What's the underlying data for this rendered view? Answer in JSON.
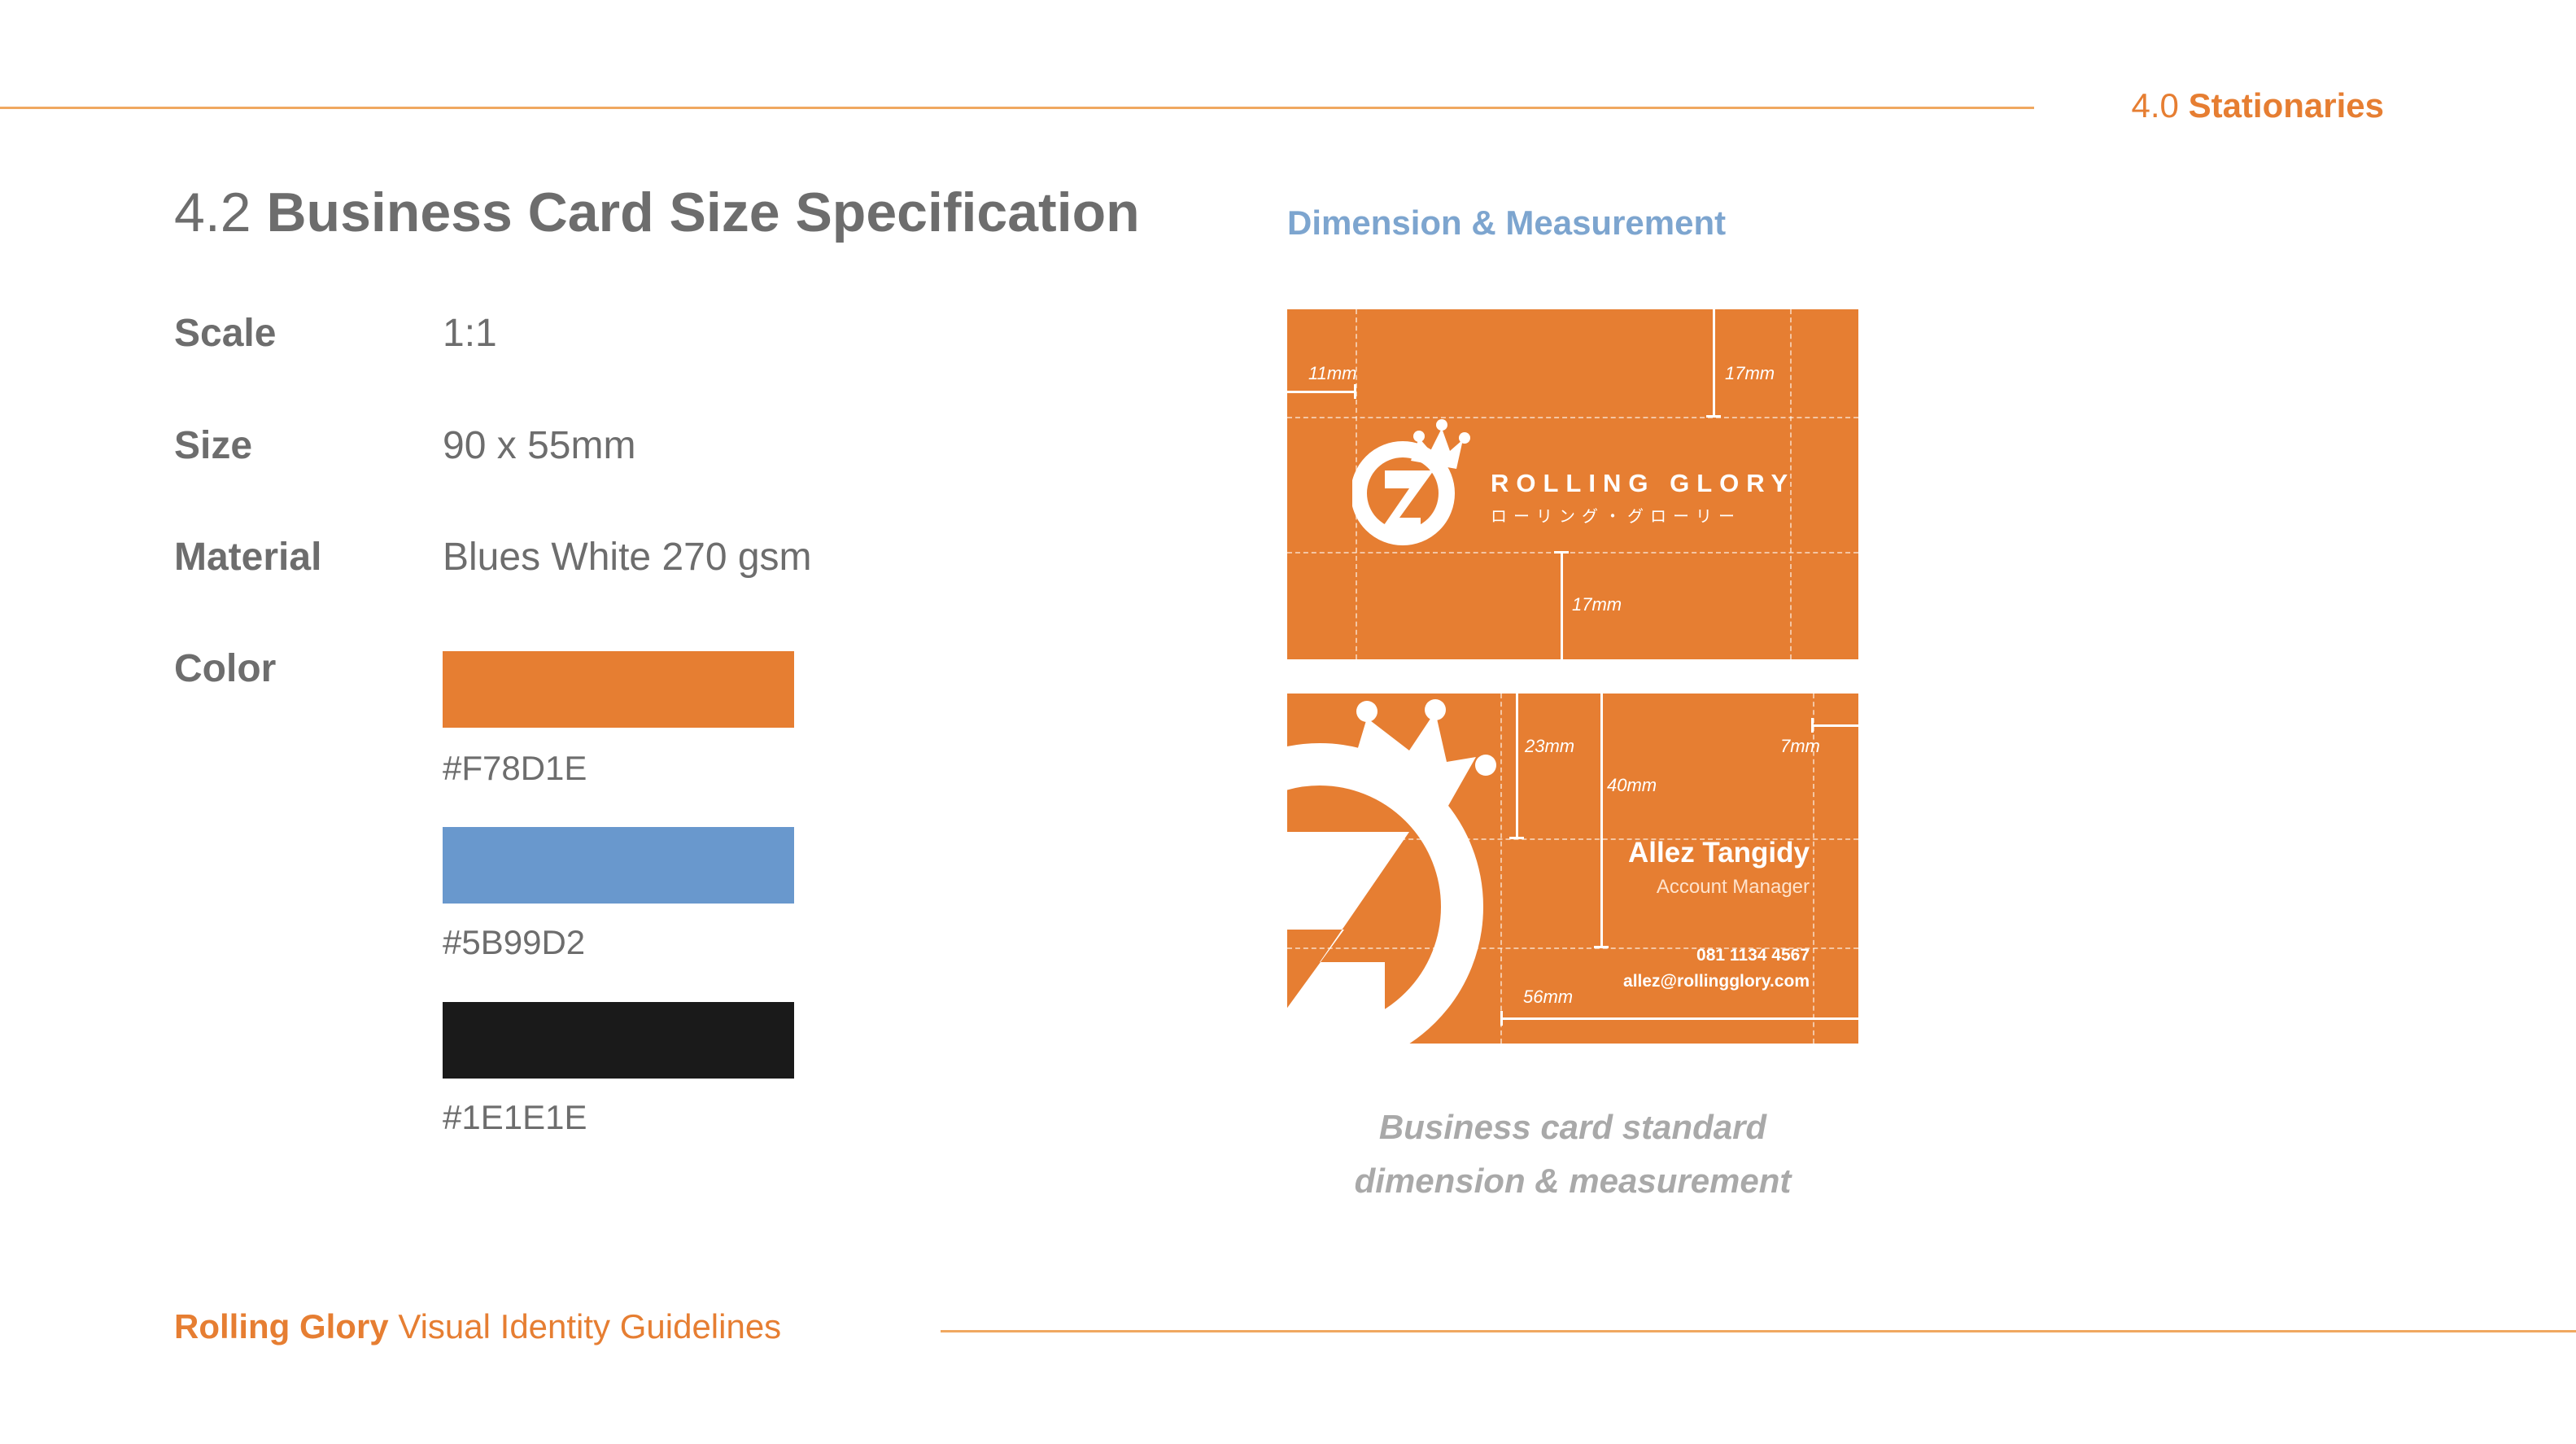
{
  "header": {
    "section_number": "4.0",
    "section_name": "Stationaries"
  },
  "title": {
    "number": "4.2",
    "text": "Business Card Size Specification"
  },
  "specs": [
    {
      "label": "Scale",
      "value": "1:1"
    },
    {
      "label": "Size",
      "value": "90 x 55mm"
    },
    {
      "label": "Material",
      "value": "Blues White 270 gsm"
    }
  ],
  "color_label": "Color",
  "colors": [
    {
      "hex": "#F78D1E",
      "swatch": "#e67e32"
    },
    {
      "hex": "#5B99D2",
      "swatch": "#6998cd"
    },
    {
      "hex": "#1E1E1E",
      "swatch": "#1a1a1a"
    }
  ],
  "dimension_heading": "Dimension & Measurement",
  "card_front": {
    "brand_name": "ROLLING GLORY",
    "brand_sub": "ローリング・グローリー",
    "measures": {
      "left": "11mm",
      "right": "17mm",
      "bottom": "17mm"
    }
  },
  "card_back": {
    "name": "Allez Tangidy",
    "role": "Account Manager",
    "phone": "081 1134 4567",
    "email": "allez@rollingglory.com",
    "measures": {
      "top_a": "23mm",
      "top_b": "40mm",
      "right": "7mm",
      "bottom": "56mm"
    }
  },
  "caption": {
    "line1": "Business card standard",
    "line2": "dimension & measurement"
  },
  "footer": {
    "brand": "Rolling Glory",
    "text": "Visual Identity Guidelines"
  },
  "brand_color": "#e67e32"
}
